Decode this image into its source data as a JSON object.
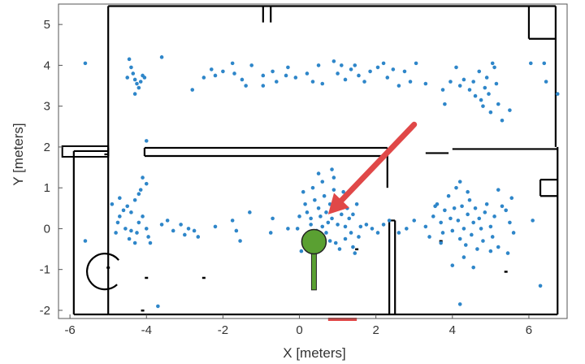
{
  "chart_data": {
    "type": "scatter",
    "xlabel": "X [meters]",
    "ylabel": "Y [meters]",
    "xlim": [
      -6.3,
      7.0
    ],
    "ylim": [
      -2.2,
      5.5
    ],
    "xticks": [
      -6,
      -4,
      -2,
      0,
      2,
      4,
      6
    ],
    "yticks": [
      -2,
      -1,
      0,
      1,
      2,
      3,
      4,
      5
    ],
    "grid": false,
    "colors": {
      "points": "#2e86c9",
      "walls": "#000000",
      "arrow": "#e04848",
      "robot": "#5aa032",
      "frame": "#555555"
    },
    "series": [
      {
        "points": [
          [
            -5.6,
            4.05
          ],
          [
            -4.45,
            4.15
          ],
          [
            -4.4,
            3.95
          ],
          [
            -4.35,
            3.8
          ],
          [
            -4.3,
            3.65
          ],
          [
            -4.25,
            3.55
          ],
          [
            -4.15,
            3.6
          ],
          [
            -4.1,
            3.75
          ],
          [
            -4.5,
            3.7
          ],
          [
            -4.2,
            3.45
          ],
          [
            -4.05,
            3.7
          ],
          [
            -4.3,
            3.3
          ],
          [
            -3.6,
            4.2
          ],
          [
            -2.8,
            3.4
          ],
          [
            -2.5,
            3.7
          ],
          [
            -2.3,
            3.9
          ],
          [
            -2.2,
            3.75
          ],
          [
            -2.0,
            3.85
          ],
          [
            -1.75,
            4.05
          ],
          [
            -1.7,
            3.8
          ],
          [
            -1.5,
            3.65
          ],
          [
            -1.4,
            3.5
          ],
          [
            -1.25,
            4.0
          ],
          [
            -0.95,
            3.75
          ],
          [
            -0.95,
            3.5
          ],
          [
            -0.7,
            3.85
          ],
          [
            -0.6,
            3.6
          ],
          [
            -0.35,
            3.75
          ],
          [
            -0.3,
            3.95
          ],
          [
            -0.1,
            3.7
          ],
          [
            0.2,
            3.8
          ],
          [
            0.35,
            3.6
          ],
          [
            0.5,
            4.0
          ],
          [
            0.6,
            3.55
          ],
          [
            0.9,
            4.1
          ],
          [
            1.0,
            3.8
          ],
          [
            1.1,
            4.0
          ],
          [
            1.2,
            3.65
          ],
          [
            1.35,
            3.9
          ],
          [
            1.45,
            4.0
          ],
          [
            1.55,
            3.75
          ],
          [
            1.7,
            3.6
          ],
          [
            1.85,
            3.85
          ],
          [
            2.05,
            3.95
          ],
          [
            2.2,
            4.05
          ],
          [
            2.3,
            3.7
          ],
          [
            2.45,
            3.9
          ],
          [
            2.6,
            3.5
          ],
          [
            2.75,
            3.85
          ],
          [
            2.9,
            3.6
          ],
          [
            3.05,
            4.05
          ],
          [
            3.3,
            3.55
          ],
          [
            3.75,
            3.4
          ],
          [
            3.8,
            3.05
          ],
          [
            3.95,
            3.6
          ],
          [
            4.1,
            3.95
          ],
          [
            4.2,
            3.5
          ],
          [
            4.3,
            3.65
          ],
          [
            4.45,
            3.4
          ],
          [
            4.55,
            3.6
          ],
          [
            4.6,
            3.25
          ],
          [
            4.7,
            3.85
          ],
          [
            4.75,
            3.15
          ],
          [
            4.8,
            3.0
          ],
          [
            4.85,
            3.45
          ],
          [
            4.9,
            3.7
          ],
          [
            4.95,
            3.3
          ],
          [
            5.0,
            2.85
          ],
          [
            5.05,
            4.05
          ],
          [
            5.1,
            3.95
          ],
          [
            5.15,
            3.55
          ],
          [
            5.2,
            3.05
          ],
          [
            5.3,
            2.65
          ],
          [
            5.5,
            2.9
          ],
          [
            6.05,
            4.05
          ],
          [
            6.4,
            4.05
          ],
          [
            6.45,
            3.6
          ],
          [
            6.75,
            3.3
          ],
          [
            -4.0,
            2.15
          ],
          [
            -4.1,
            1.25
          ],
          [
            -4.0,
            1.1
          ],
          [
            -4.15,
            0.95
          ],
          [
            -4.2,
            0.85
          ],
          [
            -4.3,
            0.7
          ],
          [
            -4.5,
            0.55
          ],
          [
            -4.6,
            0.45
          ],
          [
            -4.7,
            0.3
          ],
          [
            -4.4,
            0.4
          ],
          [
            -4.2,
            0.15
          ],
          [
            -4.1,
            0.3
          ],
          [
            -4.25,
            -0.1
          ],
          [
            -4.4,
            -0.05
          ],
          [
            -4.55,
            0.0
          ],
          [
            -4.75,
            0.15
          ],
          [
            -4.8,
            -0.1
          ],
          [
            -4.45,
            -0.25
          ],
          [
            -4.3,
            -0.35
          ],
          [
            -4.0,
            0.0
          ],
          [
            -3.95,
            -0.2
          ],
          [
            -4.7,
            0.75
          ],
          [
            -4.9,
            0.6
          ],
          [
            -3.6,
            0.1
          ],
          [
            -3.45,
            0.2
          ],
          [
            -3.3,
            -0.05
          ],
          [
            -3.1,
            0.1
          ],
          [
            -3.0,
            -0.15
          ],
          [
            -2.9,
            0.0
          ],
          [
            -2.75,
            -0.05
          ],
          [
            -2.65,
            -0.2
          ],
          [
            -2.2,
            0.05
          ],
          [
            -1.55,
            -0.3
          ],
          [
            -1.75,
            0.2
          ],
          [
            -1.65,
            -0.05
          ],
          [
            -1.3,
            0.4
          ],
          [
            -0.75,
            -0.1
          ],
          [
            -0.7,
            0.25
          ],
          [
            -0.3,
            0.0
          ],
          [
            -5.6,
            -0.3
          ],
          [
            -3.9,
            -0.35
          ],
          [
            0.1,
            0.9
          ],
          [
            0.15,
            0.6
          ],
          [
            0.2,
            0.4
          ],
          [
            0.3,
            0.25
          ],
          [
            0.35,
            1.0
          ],
          [
            0.4,
            0.7
          ],
          [
            0.5,
            0.5
          ],
          [
            0.55,
            0.3
          ],
          [
            0.6,
            1.15
          ],
          [
            0.65,
            0.8
          ],
          [
            0.7,
            0.4
          ],
          [
            0.75,
            0.15
          ],
          [
            0.8,
            0.6
          ],
          [
            0.85,
            0.25
          ],
          [
            0.9,
            0.95
          ],
          [
            0.95,
            0.5
          ],
          [
            1.0,
            0.1
          ],
          [
            1.05,
            0.7
          ],
          [
            1.1,
            0.35
          ],
          [
            1.15,
            0.9
          ],
          [
            1.2,
            0.05
          ],
          [
            1.25,
            0.5
          ],
          [
            1.3,
            0.25
          ],
          [
            1.35,
            -0.1
          ],
          [
            1.4,
            0.35
          ],
          [
            1.5,
            0.6
          ],
          [
            1.55,
            -0.2
          ],
          [
            1.6,
            0.05
          ],
          [
            0.0,
            0.3
          ],
          [
            -0.05,
            0.0
          ],
          [
            0.2,
            -0.15
          ],
          [
            0.3,
            0.1
          ],
          [
            0.45,
            -0.05
          ],
          [
            0.6,
            0.05
          ],
          [
            0.7,
            -0.1
          ],
          [
            0.8,
            -0.3
          ],
          [
            0.95,
            -0.35
          ],
          [
            1.05,
            -0.5
          ],
          [
            1.2,
            -0.25
          ],
          [
            1.4,
            -0.45
          ],
          [
            1.45,
            -0.6
          ],
          [
            0.1,
            -0.3
          ],
          [
            0.05,
            -0.55
          ],
          [
            0.85,
            1.45
          ],
          [
            0.5,
            1.35
          ],
          [
            0.9,
            1.25
          ],
          [
            1.75,
            0.1
          ],
          [
            1.9,
            0.0
          ],
          [
            2.05,
            -0.1
          ],
          [
            2.2,
            0.1
          ],
          [
            2.35,
            0.2
          ],
          [
            2.6,
            -0.1
          ],
          [
            2.8,
            0.0
          ],
          [
            3.0,
            0.2
          ],
          [
            3.3,
            0.05
          ],
          [
            3.4,
            -0.2
          ],
          [
            3.5,
            0.3
          ],
          [
            3.6,
            0.6
          ],
          [
            3.7,
            0.15
          ],
          [
            3.75,
            -0.1
          ],
          [
            3.8,
            0.45
          ],
          [
            3.9,
            0.8
          ],
          [
            3.95,
            0.25
          ],
          [
            4.0,
            -0.05
          ],
          [
            4.05,
            0.5
          ],
          [
            4.1,
            1.0
          ],
          [
            4.15,
            0.2
          ],
          [
            4.2,
            -0.25
          ],
          [
            4.25,
            0.55
          ],
          [
            4.3,
            0.0
          ],
          [
            4.35,
            -0.4
          ],
          [
            4.4,
            0.35
          ],
          [
            4.45,
            0.7
          ],
          [
            4.5,
            -0.15
          ],
          [
            4.55,
            0.15
          ],
          [
            4.6,
            0.5
          ],
          [
            4.65,
            -0.5
          ],
          [
            4.7,
            0.25
          ],
          [
            4.75,
            0.0
          ],
          [
            4.8,
            -0.3
          ],
          [
            4.85,
            0.4
          ],
          [
            4.9,
            0.6
          ],
          [
            5.0,
            0.05
          ],
          [
            5.05,
            -0.2
          ],
          [
            5.1,
            0.3
          ],
          [
            5.2,
            -0.45
          ],
          [
            5.3,
            0.55
          ],
          [
            5.45,
            -0.6
          ],
          [
            5.5,
            0.15
          ],
          [
            5.6,
            -0.1
          ],
          [
            5.0,
            -0.55
          ],
          [
            4.55,
            -0.95
          ],
          [
            4.3,
            -0.7
          ],
          [
            4.0,
            -0.9
          ],
          [
            3.7,
            -0.35
          ],
          [
            3.55,
            0.55
          ],
          [
            4.4,
            0.9
          ],
          [
            4.2,
            1.15
          ],
          [
            5.2,
            0.95
          ],
          [
            5.4,
            0.45
          ],
          [
            5.55,
            0.75
          ],
          [
            6.3,
            -1.4
          ],
          [
            6.1,
            0.2
          ],
          [
            4.2,
            -1.85
          ],
          [
            -3.7,
            -1.9
          ]
        ]
      }
    ],
    "annotations": {
      "robot": {
        "x": 0.38,
        "y": -0.32,
        "heading_end": [
          0.38,
          -1.5
        ]
      },
      "arrow": {
        "from": [
          3.0,
          2.55
        ],
        "to": [
          0.75,
          0.35
        ]
      }
    }
  }
}
